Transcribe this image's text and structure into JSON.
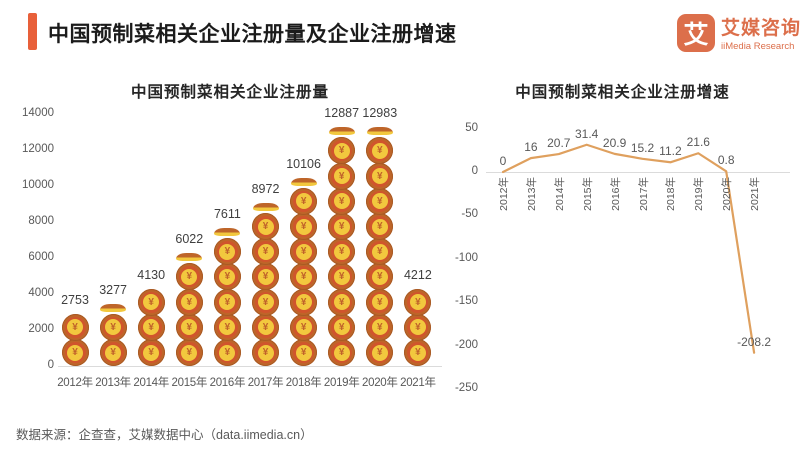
{
  "page": {
    "title": "中国预制菜相关企业注册量及企业注册增速",
    "source_note": "数据来源：企查查，艾媒数据中心（data.iimedia.cn）",
    "logo": {
      "mark": "艾",
      "name_cn": "艾媒咨询",
      "name_en": "iiMedia Research"
    }
  },
  "colors": {
    "accent": "#E8603A",
    "logo": "#DC6F4B",
    "title": "#1B1B1B",
    "line": "#DFA05E",
    "grid": "#DBDBDB",
    "axis_label": "#595959",
    "value_label": "#3F3F3F",
    "coin_outer": "#BE6529",
    "coin_ring": "#D0552C",
    "coin_face": "#F2C83E",
    "coin_glyph": "#C0622A"
  },
  "chart_data": [
    {
      "type": "bar",
      "style": "pictograph-coin-stack",
      "title": "中国预制菜相关企业注册量",
      "categories": [
        "2012年",
        "2013年",
        "2014年",
        "2015年",
        "2016年",
        "2017年",
        "2018年",
        "2019年",
        "2020年",
        "2021年"
      ],
      "values": [
        2753,
        3277,
        4130,
        6022,
        7611,
        8972,
        10106,
        12887,
        12983,
        4212
      ],
      "ylim": [
        0,
        14000
      ],
      "yticks": [
        0,
        2000,
        4000,
        6000,
        8000,
        10000,
        12000,
        14000
      ],
      "unit_per_icon": 1400,
      "icon": "coin-icon",
      "icon_glyph": "¥",
      "grid": "baseline-only",
      "legend": "none"
    },
    {
      "type": "line",
      "title": "中国预制菜相关企业注册增速",
      "categories": [
        "2012年",
        "2013年",
        "2014年",
        "2015年",
        "2016年",
        "2017年",
        "2018年",
        "2019年",
        "2020年",
        "2021年"
      ],
      "values": [
        0,
        16,
        20.7,
        31.4,
        20.9,
        15.2,
        11.2,
        21.6,
        0.8,
        -208.2
      ],
      "ylim": [
        -250,
        50
      ],
      "yticks": [
        50,
        0,
        -50,
        -100,
        -150,
        -200,
        -250
      ],
      "grid": "zero-line-only",
      "legend": "none",
      "markers": "none"
    }
  ]
}
